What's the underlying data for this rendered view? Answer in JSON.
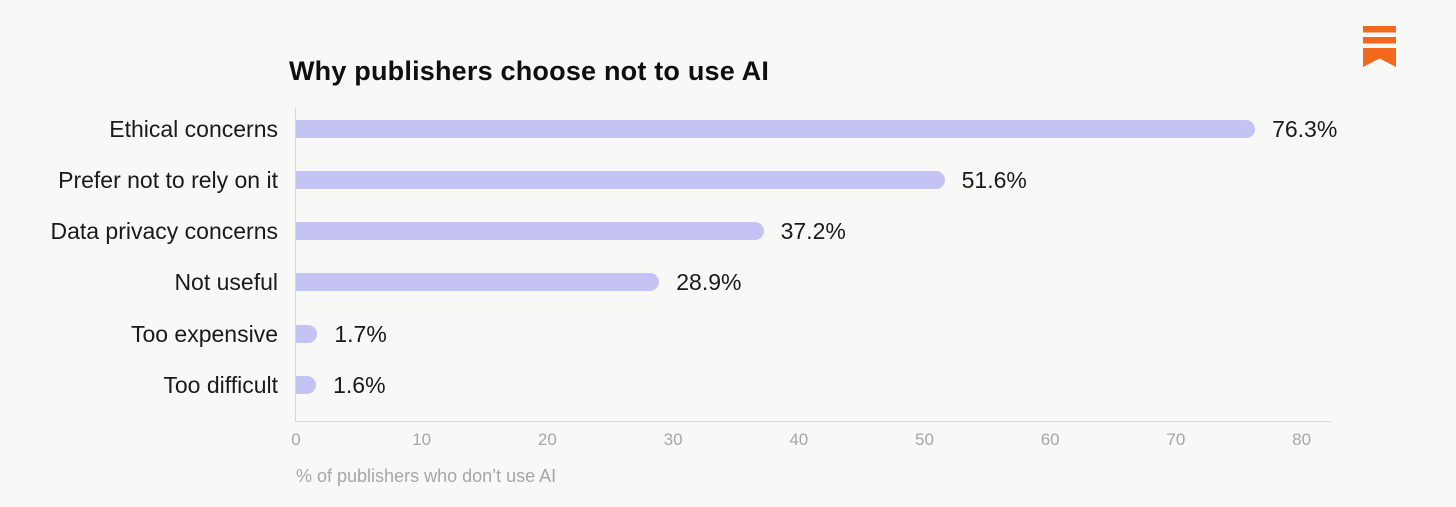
{
  "page": {
    "background_color": "#f8f8f7"
  },
  "logo": {
    "description": "orange bookmark logo with two stripes",
    "color": "#f2691e"
  },
  "chart_data": {
    "type": "bar",
    "orientation": "horizontal",
    "title": "Why publishers choose not to use AI",
    "categories": [
      "Ethical concerns",
      "Prefer not to rely on it",
      "Data privacy concerns",
      "Not useful",
      "Too expensive",
      "Too difficult"
    ],
    "values": [
      76.3,
      51.6,
      37.2,
      28.9,
      1.7,
      1.6
    ],
    "value_labels": [
      "76.3%",
      "51.6%",
      "37.2%",
      "28.9%",
      "1.7%",
      "1.6%"
    ],
    "xlabel": "% of publishers who don’t use AI",
    "ylabel": "",
    "xlim": [
      0,
      80
    ],
    "xticks": [
      0,
      10,
      20,
      30,
      40,
      50,
      60,
      70,
      80
    ],
    "grid": false,
    "legend": null,
    "bar_color": "#c4c3f3",
    "axis_line_color": "#d9d9d9",
    "tick_label_color": "#a6a6a6",
    "label_color": "#1a1a1a"
  }
}
